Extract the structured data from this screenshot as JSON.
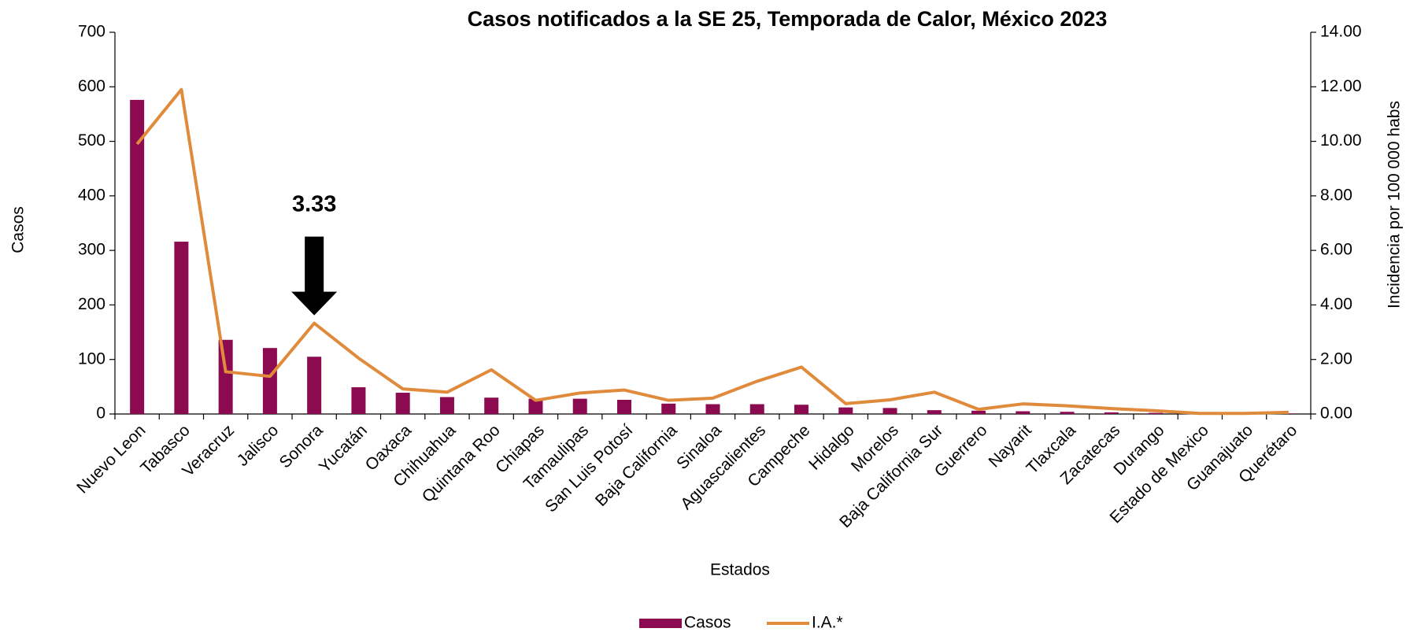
{
  "chart_data": {
    "type": "bar_line",
    "title": "Casos notificados a la SE 25, Temporada de Calor, México 2023",
    "x_label": "Estados",
    "y_label": "Casos",
    "y2_label": "Incidencia por 100 000 habs",
    "annotation": "3.33",
    "categories": [
      "Nuevo Leon",
      "Tabasco",
      "Veracruz",
      "Jalisco",
      "Sonora",
      "Yucatán",
      "Oaxaca",
      "Chihuahua",
      "Quintana Roo",
      "Chiapas",
      "Tamaulipas",
      "San Luis Potosí",
      "Baja California",
      "Sinaloa",
      "Aguascalientes",
      "Campeche",
      "Hidalgo",
      "Morelos",
      "Baja California Sur",
      "Guerrero",
      "Nayarit",
      "Tlaxcala",
      "Zacatecas",
      "Durango",
      "Estado de Mexico",
      "Guanajuato",
      "Querétaro"
    ],
    "series": [
      {
        "name": "Casos",
        "type": "bar",
        "color": "#8b0a50",
        "values": [
          576,
          316,
          136,
          121,
          105,
          49,
          39,
          31,
          30,
          28,
          28,
          26,
          19,
          18,
          18,
          17,
          12,
          11,
          7,
          6,
          5,
          4,
          3,
          2,
          1,
          1,
          1
        ]
      },
      {
        "name": "I.A.*",
        "type": "line",
        "axis": "y2",
        "color": "#e08a3c",
        "values": [
          9.9,
          11.9,
          1.55,
          1.38,
          3.33,
          2.05,
          0.92,
          0.8,
          1.62,
          0.5,
          0.77,
          0.88,
          0.5,
          0.58,
          1.2,
          1.72,
          0.38,
          0.52,
          0.8,
          0.17,
          0.37,
          0.3,
          0.2,
          0.12,
          0.02,
          0.02,
          0.06
        ]
      }
    ],
    "ylim": [
      0,
      700
    ],
    "yticks": [
      0,
      100,
      200,
      300,
      400,
      500,
      600,
      700
    ],
    "y2lim": [
      0,
      14
    ],
    "y2ticks": [
      {
        "value": 0,
        "label": "0.00"
      },
      {
        "value": 2,
        "label": "2.00"
      },
      {
        "value": 4,
        "label": "4.00"
      },
      {
        "value": 6,
        "label": "6.00"
      },
      {
        "value": 8,
        "label": "8.00"
      },
      {
        "value": 10,
        "label": "10.00"
      },
      {
        "value": 12,
        "label": "12.00"
      },
      {
        "value": 14,
        "label": "14.00"
      }
    ],
    "legend": "bottom"
  }
}
